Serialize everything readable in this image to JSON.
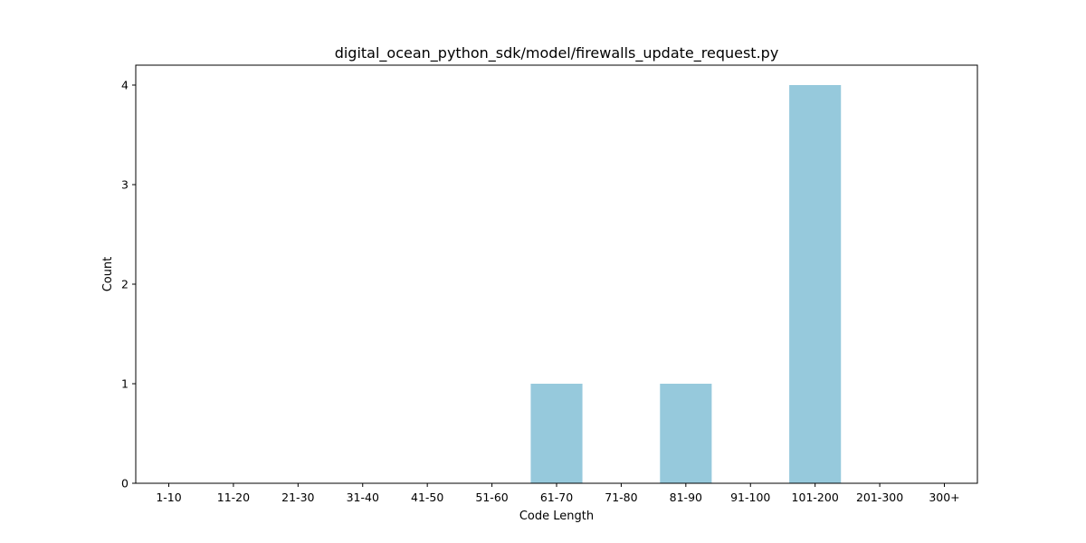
{
  "chart_data": {
    "type": "bar",
    "title": "digital_ocean_python_sdk/model/firewalls_update_request.py",
    "xlabel": "Code Length",
    "ylabel": "Count",
    "categories": [
      "1-10",
      "11-20",
      "21-30",
      "31-40",
      "41-50",
      "51-60",
      "61-70",
      "71-80",
      "81-90",
      "91-100",
      "101-200",
      "201-300",
      "300+"
    ],
    "values": [
      0,
      0,
      0,
      0,
      0,
      0,
      1,
      0,
      1,
      0,
      4,
      0,
      0
    ],
    "yticks": [
      0,
      1,
      2,
      3,
      4
    ],
    "ylim": [
      0,
      4.2
    ],
    "grid": false,
    "bar_color": "#96c9dc"
  }
}
